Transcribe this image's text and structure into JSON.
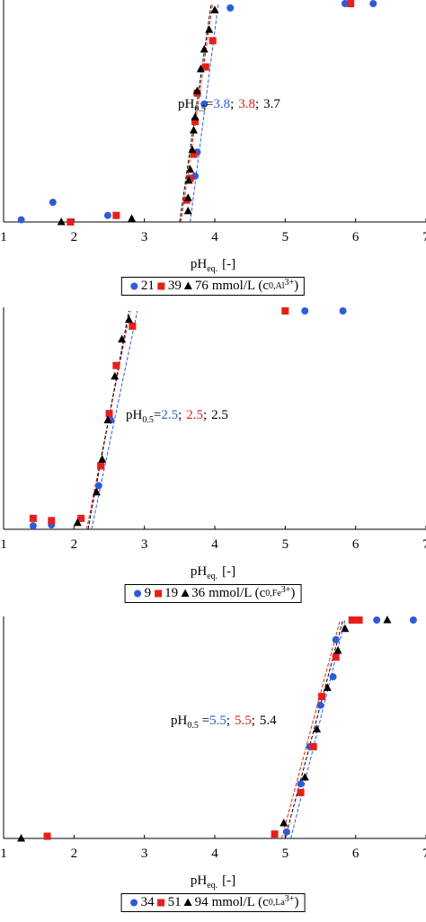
{
  "chart_data": [
    {
      "type": "scatter",
      "xlabel": {
        "main": "pH",
        "sub": "eq.",
        "tail": "[-]"
      },
      "xlim": [
        1,
        7
      ],
      "xticks": [
        1,
        2,
        3,
        4,
        5,
        6,
        7
      ],
      "ylim": [
        0,
        100
      ],
      "annotation": {
        "main": "pH",
        "sub": "0.5",
        "eq": "=",
        "sep": ";",
        "values": [
          "3.8",
          "3.8",
          "3.7"
        ]
      },
      "legend_unit": {
        "main": "mmol/L (c",
        "sub": "0,Al",
        "sup": "3+",
        "end": ")"
      },
      "series": [
        {
          "name": "21",
          "color": "#2f5bd9",
          "marker": "circle",
          "x": [
            1.25,
            1.7,
            2.48,
            3.72,
            3.75,
            3.85,
            4.22,
            5.85,
            6.25
          ],
          "values": [
            1,
            9,
            3,
            21,
            32,
            54,
            98,
            100,
            100
          ],
          "fit": {
            "x": [
              3.65,
              4.05
            ],
            "y": [
              0,
              100
            ]
          }
        },
        {
          "name": "39",
          "color": "#e5201b",
          "marker": "square",
          "x": [
            1.95,
            2.6,
            3.6,
            3.65,
            3.7,
            3.72,
            3.75,
            3.87,
            3.97,
            5.93
          ],
          "values": [
            0,
            3,
            10,
            20,
            31,
            46,
            59,
            71,
            83,
            100
          ],
          "fit": {
            "x": [
              3.52,
              3.97
            ],
            "y": [
              0,
              100
            ]
          }
        },
        {
          "name": "76",
          "color": "#000000",
          "marker": "triangle",
          "x": [
            1.82,
            2.82,
            3.62,
            3.62,
            3.63,
            3.65,
            3.68,
            3.7,
            3.72,
            3.75,
            3.8,
            3.85,
            3.92,
            4.0
          ],
          "values": [
            0,
            1.5,
            5,
            11,
            19,
            24,
            33,
            42,
            48,
            60,
            70,
            79,
            88,
            97
          ],
          "fit": {
            "x": [
              3.5,
              3.95
            ],
            "y": [
              0,
              100
            ]
          }
        }
      ]
    },
    {
      "type": "scatter",
      "xlabel": {
        "main": "pH",
        "sub": "eq.",
        "tail": "[-]"
      },
      "xlim": [
        1,
        7
      ],
      "xticks": [
        1,
        2,
        3,
        4,
        5,
        6,
        7
      ],
      "ylim": [
        0,
        100
      ],
      "annotation": {
        "main": "pH",
        "sub": "0.5",
        "eq": "=",
        "sep": ";",
        "values": [
          "2.5",
          "2.5",
          "2.5"
        ]
      },
      "legend_unit": {
        "main": "mmol/L (c",
        "sub": "0,Fe",
        "sup": "3+",
        "end": ")"
      },
      "series": [
        {
          "name": "9",
          "color": "#2f5bd9",
          "marker": "circle",
          "x": [
            1.42,
            1.68,
            2.1,
            2.35,
            2.52,
            5.28,
            5.82
          ],
          "values": [
            1.6,
            2,
            5,
            20,
            50,
            100,
            100
          ],
          "fit": {
            "x": [
              2.25,
              2.9
            ],
            "y": [
              0,
              100
            ]
          }
        },
        {
          "name": "19",
          "color": "#e5201b",
          "marker": "square",
          "x": [
            1.42,
            1.68,
            2.1,
            2.38,
            2.5,
            2.6,
            2.83,
            5.0
          ],
          "values": [
            5,
            4,
            5,
            29,
            53,
            75,
            93,
            100
          ],
          "fit": {
            "x": [
              2.18,
              2.8
            ],
            "y": [
              0,
              100
            ]
          }
        },
        {
          "name": "36",
          "color": "#000000",
          "marker": "triangle",
          "x": [
            2.05,
            2.32,
            2.4,
            2.48,
            2.58,
            2.68,
            2.78
          ],
          "values": [
            3,
            17,
            32,
            50,
            70,
            87,
            96
          ],
          "fit": {
            "x": [
              2.2,
              2.78
            ],
            "y": [
              0,
              100
            ]
          }
        }
      ]
    },
    {
      "type": "scatter",
      "xlabel": {
        "main": "pH",
        "sub": "eq.",
        "tail": "[-]"
      },
      "xlim": [
        1,
        7
      ],
      "xticks": [
        1,
        2,
        3,
        4,
        5,
        6,
        7
      ],
      "ylim": [
        0,
        100
      ],
      "annotation": {
        "main": "pH",
        "sub": "0.5",
        "eq": " =",
        "sep": ";",
        "values": [
          "5.5",
          "5.5",
          "5.4"
        ]
      },
      "legend_unit": {
        "main": "mmol/L (c",
        "sub": "0,La",
        "sup": "3+",
        "end": ")"
      },
      "series": [
        {
          "name": "34",
          "color": "#2f5bd9",
          "marker": "circle",
          "x": [
            5.02,
            5.22,
            5.35,
            5.5,
            5.68,
            5.72,
            6.3,
            6.82
          ],
          "values": [
            3,
            25,
            42,
            61,
            74,
            91,
            100,
            100
          ],
          "fit": {
            "x": [
              5.08,
              5.85
            ],
            "y": [
              0,
              100
            ]
          }
        },
        {
          "name": "51",
          "color": "#e5201b",
          "marker": "square",
          "x": [
            1.62,
            4.85,
            5.22,
            5.4,
            5.52,
            5.72,
            5.95,
            6.05
          ],
          "values": [
            1,
            2,
            21,
            42,
            65,
            83,
            100,
            100
          ],
          "fit": {
            "x": [
              4.95,
              5.78
            ],
            "y": [
              0,
              100
            ]
          }
        },
        {
          "name": "94",
          "color": "#000000",
          "marker": "triangle",
          "x": [
            1.25,
            4.98,
            5.28,
            5.45,
            5.6,
            5.75,
            5.85,
            6.45
          ],
          "values": [
            0,
            7,
            28,
            50,
            69,
            86,
            96,
            100
          ],
          "fit": {
            "x": [
              5.0,
              5.82
            ],
            "y": [
              0,
              100
            ]
          }
        }
      ]
    }
  ]
}
